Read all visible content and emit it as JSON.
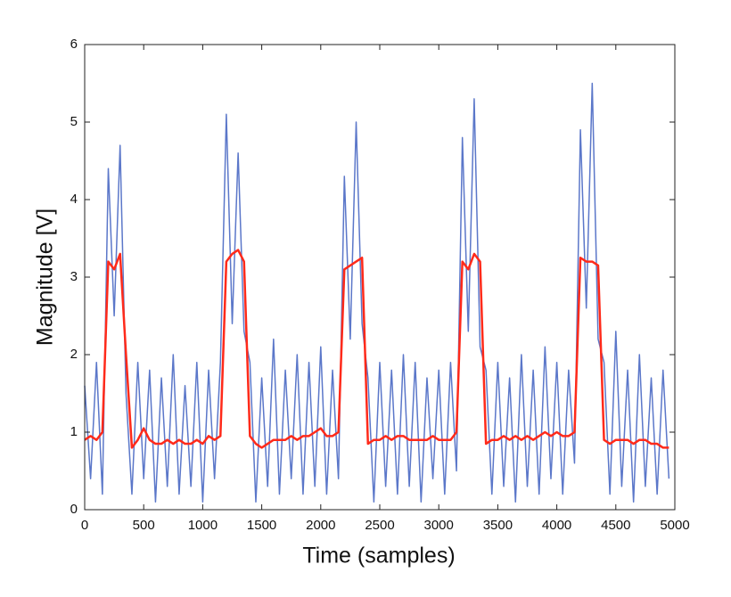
{
  "chart_data": {
    "type": "line",
    "xlabel": "Time (samples)",
    "ylabel": "Magnitude [V]",
    "x": [
      0,
      50,
      100,
      150,
      200,
      250,
      300,
      350,
      400,
      450,
      500,
      550,
      600,
      650,
      700,
      750,
      800,
      850,
      900,
      950,
      1000,
      1050,
      1100,
      1150,
      1200,
      1250,
      1300,
      1350,
      1400,
      1450,
      1500,
      1550,
      1600,
      1650,
      1700,
      1750,
      1800,
      1850,
      1900,
      1950,
      2000,
      2050,
      2100,
      2150,
      2200,
      2250,
      2300,
      2350,
      2400,
      2450,
      2500,
      2550,
      2600,
      2650,
      2700,
      2750,
      2800,
      2850,
      2900,
      2950,
      3000,
      3050,
      3100,
      3150,
      3200,
      3250,
      3300,
      3350,
      3400,
      3450,
      3500,
      3550,
      3600,
      3650,
      3700,
      3750,
      3800,
      3850,
      3900,
      3950,
      4000,
      4050,
      4100,
      4150,
      4200,
      4250,
      4300,
      4350,
      4400,
      4450,
      4500,
      4550,
      4600,
      4650,
      4700,
      4750,
      4800,
      4850,
      4900,
      4950
    ],
    "series": [
      {
        "color": "#5b77c9",
        "values": [
          1.6,
          0.4,
          1.9,
          0.2,
          4.4,
          2.5,
          4.7,
          1.5,
          0.2,
          1.9,
          0.4,
          1.8,
          0.1,
          1.7,
          0.3,
          2.0,
          0.2,
          1.6,
          0.3,
          1.9,
          0.1,
          1.8,
          0.4,
          1.9,
          5.1,
          2.4,
          4.6,
          2.3,
          1.9,
          0.1,
          1.7,
          0.3,
          2.2,
          0.2,
          1.8,
          0.4,
          2.0,
          0.2,
          1.9,
          0.3,
          2.1,
          0.2,
          1.8,
          0.4,
          4.3,
          2.2,
          5.0,
          2.4,
          1.7,
          0.1,
          1.9,
          0.3,
          1.8,
          0.2,
          2.0,
          0.3,
          1.9,
          0.1,
          1.7,
          0.4,
          1.8,
          0.2,
          1.9,
          0.5,
          4.8,
          2.3,
          5.3,
          2.1,
          1.8,
          0.2,
          1.9,
          0.3,
          1.7,
          0.1,
          2.0,
          0.3,
          1.8,
          0.2,
          2.1,
          0.4,
          1.9,
          0.2,
          1.8,
          0.6,
          4.9,
          2.6,
          5.5,
          2.2,
          1.9,
          0.2,
          2.3,
          0.3,
          1.8,
          0.1,
          2.0,
          0.3,
          1.7,
          0.2,
          1.8,
          0.4
        ]
      },
      {
        "color": "#ff2a1a",
        "values": [
          0.9,
          0.95,
          0.9,
          1.0,
          3.2,
          3.1,
          3.3,
          2.0,
          0.8,
          0.9,
          1.05,
          0.9,
          0.85,
          0.85,
          0.9,
          0.85,
          0.9,
          0.85,
          0.85,
          0.9,
          0.85,
          0.95,
          0.9,
          0.95,
          3.2,
          3.3,
          3.35,
          3.2,
          0.95,
          0.85,
          0.8,
          0.85,
          0.9,
          0.9,
          0.9,
          0.95,
          0.9,
          0.95,
          0.95,
          1.0,
          1.05,
          0.95,
          0.95,
          1.0,
          3.1,
          3.15,
          3.2,
          3.25,
          0.85,
          0.9,
          0.9,
          0.95,
          0.9,
          0.95,
          0.95,
          0.9,
          0.9,
          0.9,
          0.9,
          0.95,
          0.9,
          0.9,
          0.9,
          1.0,
          3.2,
          3.1,
          3.3,
          3.2,
          0.85,
          0.9,
          0.9,
          0.95,
          0.9,
          0.95,
          0.9,
          0.95,
          0.9,
          0.95,
          1.0,
          0.95,
          1.0,
          0.95,
          0.95,
          1.0,
          3.25,
          3.2,
          3.2,
          3.15,
          0.9,
          0.85,
          0.9,
          0.9,
          0.9,
          0.85,
          0.9,
          0.9,
          0.85,
          0.85,
          0.8,
          0.8
        ]
      }
    ],
    "xlim": [
      0,
      5000
    ],
    "xticks": [
      0,
      500,
      1000,
      1500,
      2000,
      2500,
      3000,
      3500,
      4000,
      4500,
      5000
    ],
    "ylim": [
      0,
      6
    ],
    "yticks": [
      0,
      1,
      2,
      3,
      4,
      5,
      6
    ]
  }
}
